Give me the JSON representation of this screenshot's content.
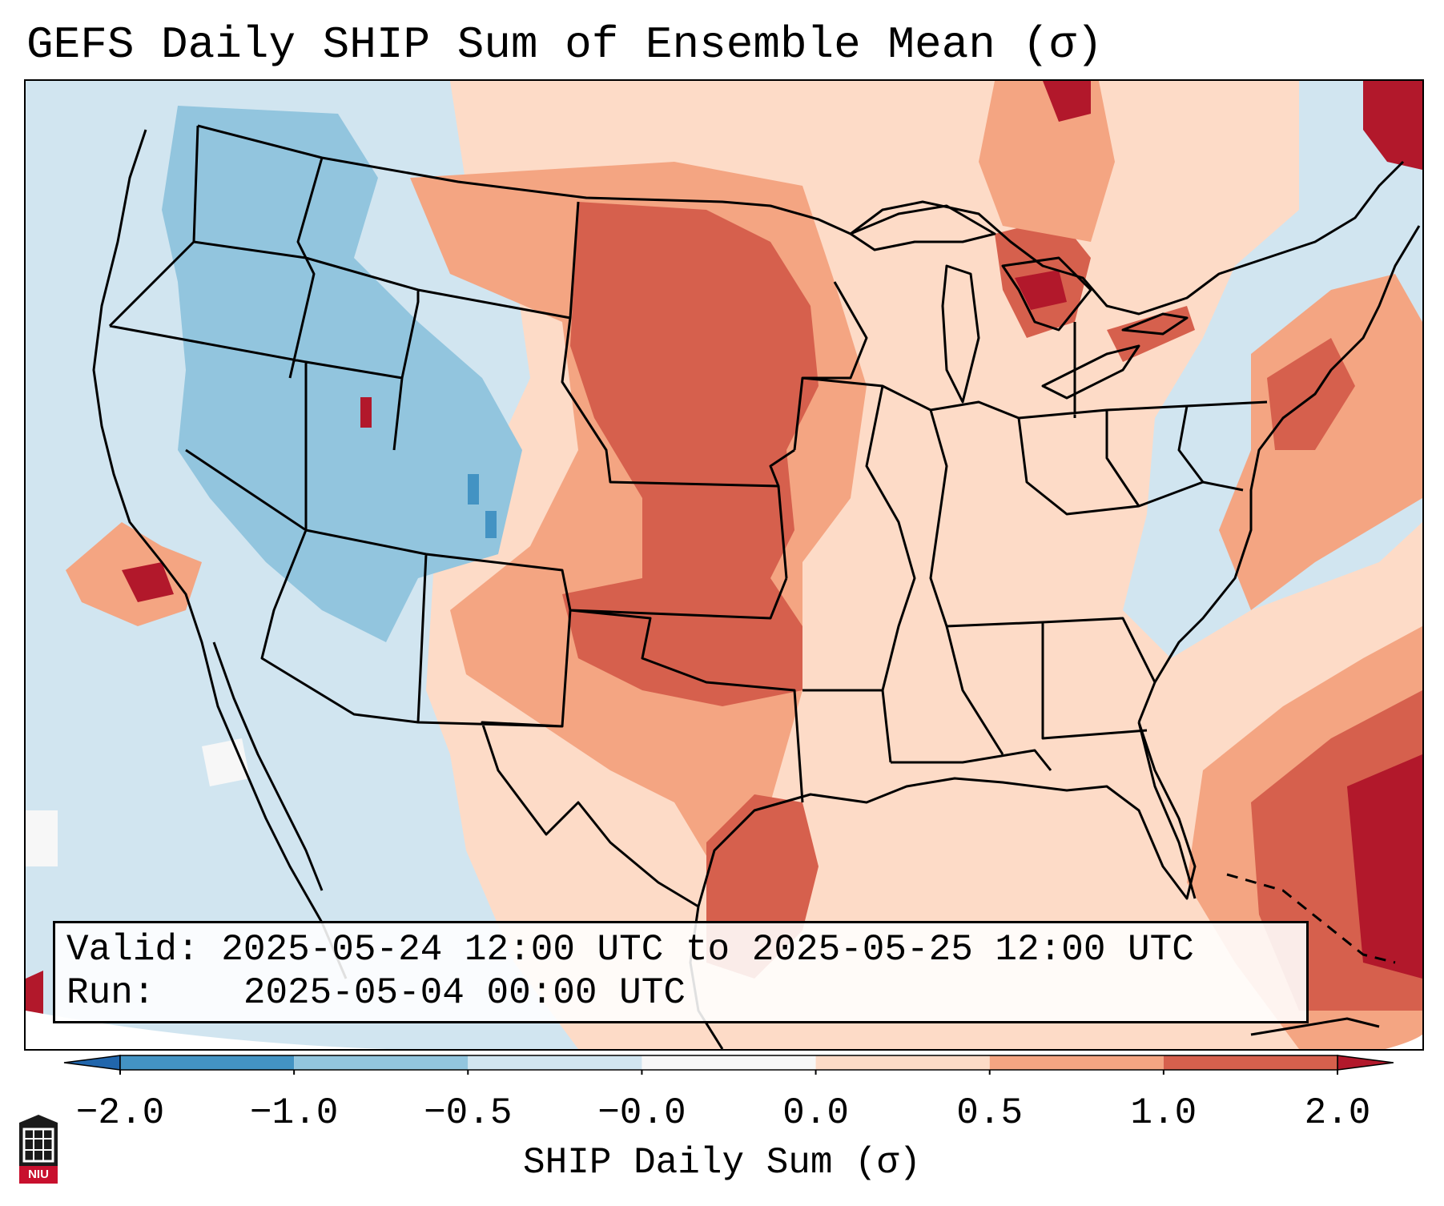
{
  "title": "GEFS Daily SHIP Sum of Ensemble Mean (σ)",
  "info": {
    "valid_label": "Valid:",
    "valid_value": "2025-05-24 12:00 UTC to 2025-05-25 12:00 UTC",
    "run_label": "Run:",
    "run_value": "2025-05-04 00:00 UTC"
  },
  "colorbar": {
    "label": "SHIP Daily Sum (σ)",
    "ticks": [
      "−2.0",
      "−1.0",
      "−0.5",
      "−0.0",
      "0.0",
      "0.5",
      "1.0",
      "2.0"
    ],
    "colors": [
      "#4393c3",
      "#92c5de",
      "#d1e5f0",
      "#f7f7f7",
      "#fddbc7",
      "#f4a582",
      "#d6604d"
    ],
    "extend_low_color": "#2166ac",
    "extend_high_color": "#b2182b"
  },
  "map": {
    "background_color": "#d1e5f0",
    "boundary_color": "#000000"
  },
  "logo": {
    "text": "NIU",
    "icon": "niu-seal-icon"
  }
}
